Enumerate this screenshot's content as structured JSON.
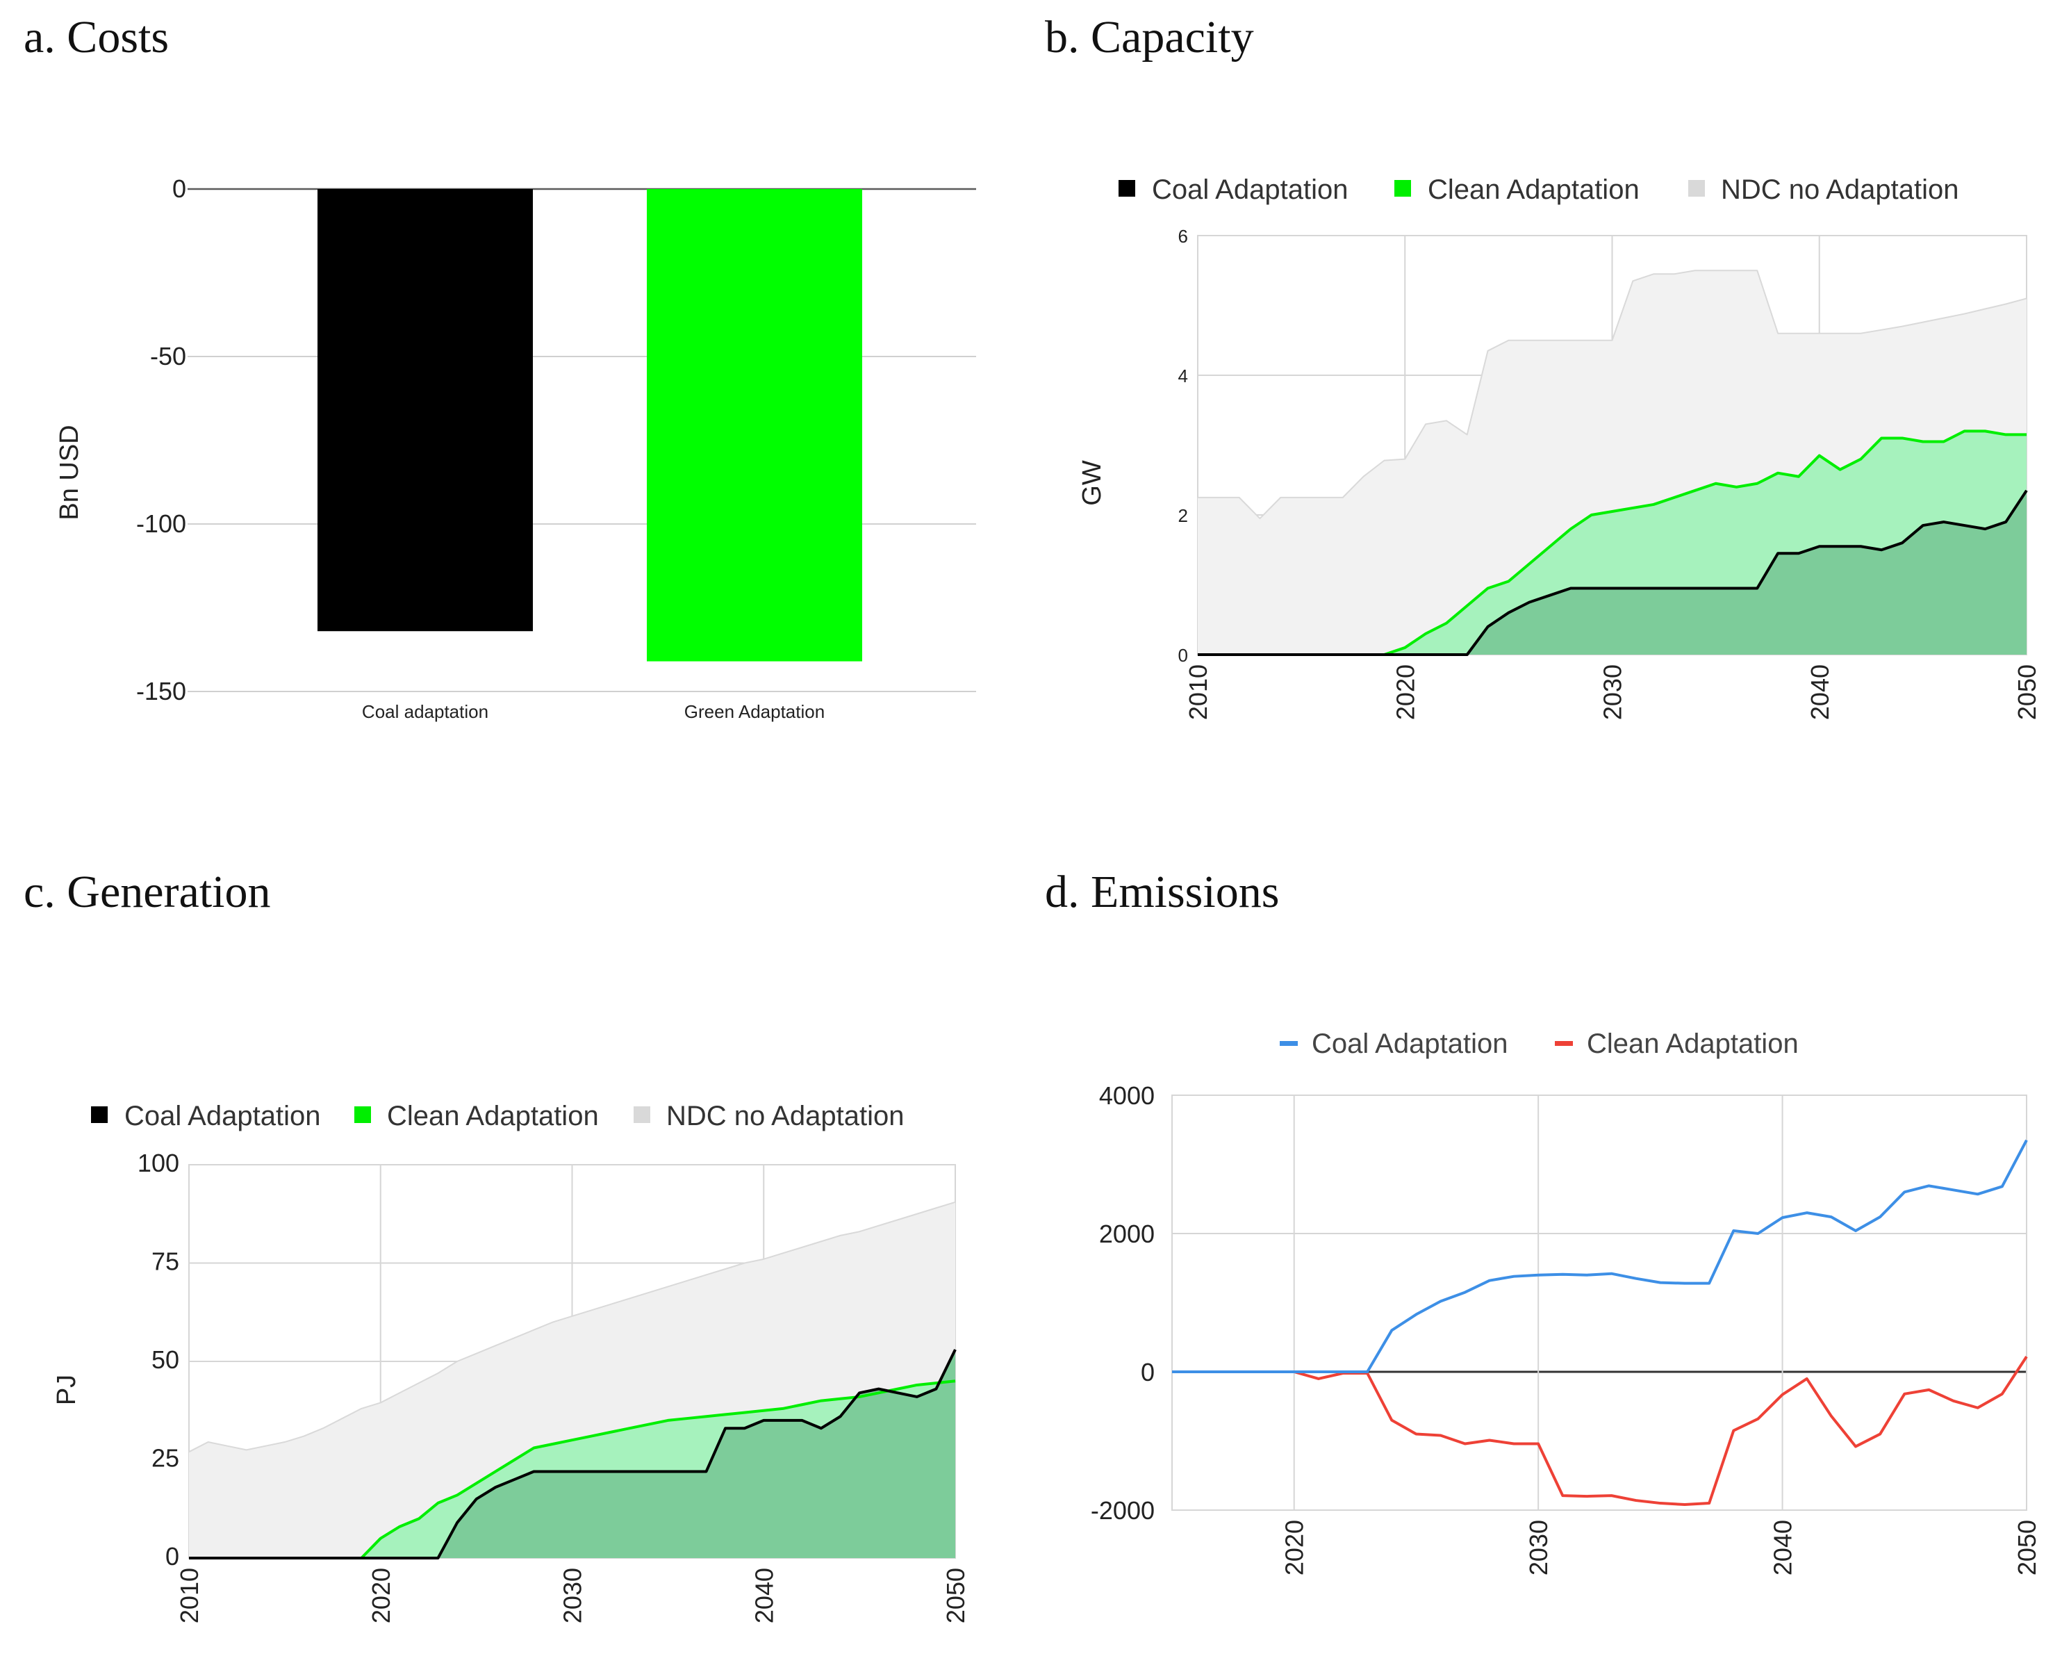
{
  "chart_data": [
    {
      "id": "a",
      "type": "bar",
      "title": "a. Costs",
      "ylabel": "Bn USD",
      "xlabel": "",
      "categories": [
        "Coal adaptation",
        "Green Adaptation"
      ],
      "values": [
        -132,
        -141
      ],
      "colors": [
        "#000000",
        "#00ff00"
      ],
      "ylim": [
        -150,
        0
      ],
      "yticks": [
        0,
        -50,
        -100,
        -150
      ],
      "grid": true
    },
    {
      "id": "b",
      "type": "area",
      "title": "b. Capacity",
      "ylabel": "GW",
      "xlabel": "",
      "x": [
        2010,
        2011,
        2012,
        2013,
        2014,
        2015,
        2016,
        2017,
        2018,
        2019,
        2020,
        2021,
        2022,
        2023,
        2024,
        2025,
        2026,
        2027,
        2028,
        2029,
        2030,
        2031,
        2032,
        2033,
        2034,
        2035,
        2036,
        2037,
        2038,
        2039,
        2040,
        2041,
        2042,
        2043,
        2044,
        2045,
        2046,
        2047,
        2048,
        2049,
        2050
      ],
      "ylim": [
        0,
        6
      ],
      "yticks": [
        0,
        2,
        4,
        6
      ],
      "xlim": [
        2010,
        2050
      ],
      "xticks": [
        2010,
        2020,
        2030,
        2040,
        2050
      ],
      "legend": [
        "Coal Adaptation",
        "Clean Adaptation",
        "NDC no Adaptation"
      ],
      "legend_position": "top",
      "series": [
        {
          "name": "NDC no Adaptation",
          "color": "#d9d9d9",
          "fill": "#f2f2f2",
          "values": [
            2.25,
            2.25,
            2.25,
            1.95,
            2.25,
            2.25,
            2.25,
            2.25,
            2.55,
            2.78,
            2.8,
            3.3,
            3.35,
            3.15,
            4.35,
            4.5,
            4.5,
            4.5,
            4.5,
            4.5,
            4.5,
            5.35,
            5.45,
            5.45,
            5.5,
            5.5,
            5.5,
            5.5,
            4.6,
            4.6,
            4.6,
            4.6,
            4.6,
            4.65,
            4.7,
            4.76,
            4.82,
            4.88,
            4.95,
            5.02,
            5.1
          ]
        },
        {
          "name": "Clean Adaptation",
          "color": "#00ee00",
          "fill": "#a6f2bd",
          "values": [
            0,
            0,
            0,
            0,
            0,
            0,
            0,
            0,
            0,
            0,
            0.1,
            0.3,
            0.45,
            0.7,
            0.95,
            1.05,
            1.3,
            1.55,
            1.8,
            2.0,
            2.05,
            2.1,
            2.15,
            2.25,
            2.35,
            2.45,
            2.4,
            2.45,
            2.6,
            2.55,
            2.85,
            2.65,
            2.8,
            3.1,
            3.1,
            3.05,
            3.05,
            3.2,
            3.2,
            3.15,
            3.15
          ]
        },
        {
          "name": "Coal Adaptation",
          "color": "#000000",
          "fill": "#7dcc9a",
          "values": [
            0,
            0,
            0,
            0,
            0,
            0,
            0,
            0,
            0,
            0,
            0,
            0,
            0,
            0,
            0.4,
            0.6,
            0.75,
            0.85,
            0.95,
            0.95,
            0.95,
            0.95,
            0.95,
            0.95,
            0.95,
            0.95,
            0.95,
            0.95,
            1.45,
            1.45,
            1.55,
            1.55,
            1.55,
            1.5,
            1.6,
            1.85,
            1.9,
            1.85,
            1.8,
            1.9,
            2.35
          ]
        }
      ]
    },
    {
      "id": "c",
      "type": "area",
      "title": "c. Generation",
      "ylabel": "PJ",
      "xlabel": "",
      "x": [
        2010,
        2011,
        2012,
        2013,
        2014,
        2015,
        2016,
        2017,
        2018,
        2019,
        2020,
        2021,
        2022,
        2023,
        2024,
        2025,
        2026,
        2027,
        2028,
        2029,
        2030,
        2031,
        2032,
        2033,
        2034,
        2035,
        2036,
        2037,
        2038,
        2039,
        2040,
        2041,
        2042,
        2043,
        2044,
        2045,
        2046,
        2047,
        2048,
        2049,
        2050
      ],
      "ylim": [
        0,
        100
      ],
      "yticks": [
        0,
        25,
        50,
        75,
        100
      ],
      "xlim": [
        2010,
        2050
      ],
      "xticks": [
        2010,
        2020,
        2030,
        2040,
        2050
      ],
      "legend": [
        "Coal Adaptation",
        "Clean Adaptation",
        "NDC no Adaptation"
      ],
      "legend_position": "top",
      "series": [
        {
          "name": "NDC no Adaptation",
          "color": "#d9d9d9",
          "fill": "#f0f0f0",
          "values": [
            27,
            29.5,
            28.5,
            27.5,
            28.5,
            29.5,
            31,
            33,
            35.5,
            38,
            39.5,
            42,
            44.5,
            47,
            50,
            52,
            54,
            56,
            58,
            60,
            61.5,
            63,
            64.5,
            66,
            67.5,
            69,
            70.5,
            72,
            73.5,
            75,
            76,
            77.5,
            79,
            80.5,
            82,
            83,
            84.5,
            86,
            87.5,
            89,
            90.5
          ]
        },
        {
          "name": "Clean Adaptation",
          "color": "#00ee00",
          "fill": "#a6f2bd",
          "values": [
            0,
            0,
            0,
            0,
            0,
            0,
            0,
            0,
            0,
            0,
            5,
            8,
            10,
            14,
            16,
            19,
            22,
            25,
            28,
            29,
            30,
            31,
            32,
            33,
            34,
            35,
            35.5,
            36,
            36.5,
            37,
            37.5,
            38,
            39,
            40,
            40.5,
            41,
            42,
            43,
            44,
            44.5,
            45
          ]
        },
        {
          "name": "Coal Adaptation",
          "color": "#000000",
          "fill": "#7dcc9a",
          "values": [
            0,
            0,
            0,
            0,
            0,
            0,
            0,
            0,
            0,
            0,
            0,
            0,
            0,
            0,
            9,
            15,
            18,
            20,
            22,
            22,
            22,
            22,
            22,
            22,
            22,
            22,
            22,
            22,
            33,
            33,
            35,
            35,
            35,
            33,
            36,
            42,
            43,
            42,
            41,
            43,
            53
          ]
        }
      ]
    },
    {
      "id": "d",
      "type": "line",
      "title": "d. Emissions",
      "ylabel": "",
      "xlabel": "",
      "x": [
        2015,
        2016,
        2017,
        2018,
        2019,
        2020,
        2021,
        2022,
        2023,
        2024,
        2025,
        2026,
        2027,
        2028,
        2029,
        2030,
        2031,
        2032,
        2033,
        2034,
        2035,
        2036,
        2037,
        2038,
        2039,
        2040,
        2041,
        2042,
        2043,
        2044,
        2045,
        2046,
        2047,
        2048,
        2049,
        2050
      ],
      "ylim": [
        -2000,
        4000
      ],
      "yticks": [
        4000,
        2000,
        0,
        -2000
      ],
      "xlim": [
        2015,
        2050
      ],
      "xticks": [
        2020,
        2030,
        2040,
        2050
      ],
      "legend": [
        "Coal Adaptation",
        "Clean Adaptation"
      ],
      "legend_position": "top",
      "series": [
        {
          "name": "Coal Adaptation",
          "color": "#3d8fe6",
          "values": [
            0,
            0,
            0,
            0,
            0,
            0,
            0,
            0,
            0,
            600,
            830,
            1020,
            1150,
            1320,
            1380,
            1400,
            1410,
            1400,
            1420,
            1350,
            1290,
            1280,
            1280,
            2040,
            2000,
            2230,
            2300,
            2240,
            2040,
            2240,
            2600,
            2690,
            2630,
            2570,
            2680,
            3350
          ]
        },
        {
          "name": "Clean Adaptation",
          "color": "#ee4136",
          "values": [
            0,
            0,
            0,
            0,
            0,
            0,
            -100,
            -20,
            -20,
            -700,
            -900,
            -920,
            -1040,
            -990,
            -1040,
            -1040,
            -1790,
            -1800,
            -1790,
            -1860,
            -1900,
            -1920,
            -1900,
            -850,
            -680,
            -330,
            -100,
            -640,
            -1080,
            -900,
            -320,
            -260,
            -420,
            -520,
            -320,
            220
          ]
        }
      ]
    }
  ]
}
